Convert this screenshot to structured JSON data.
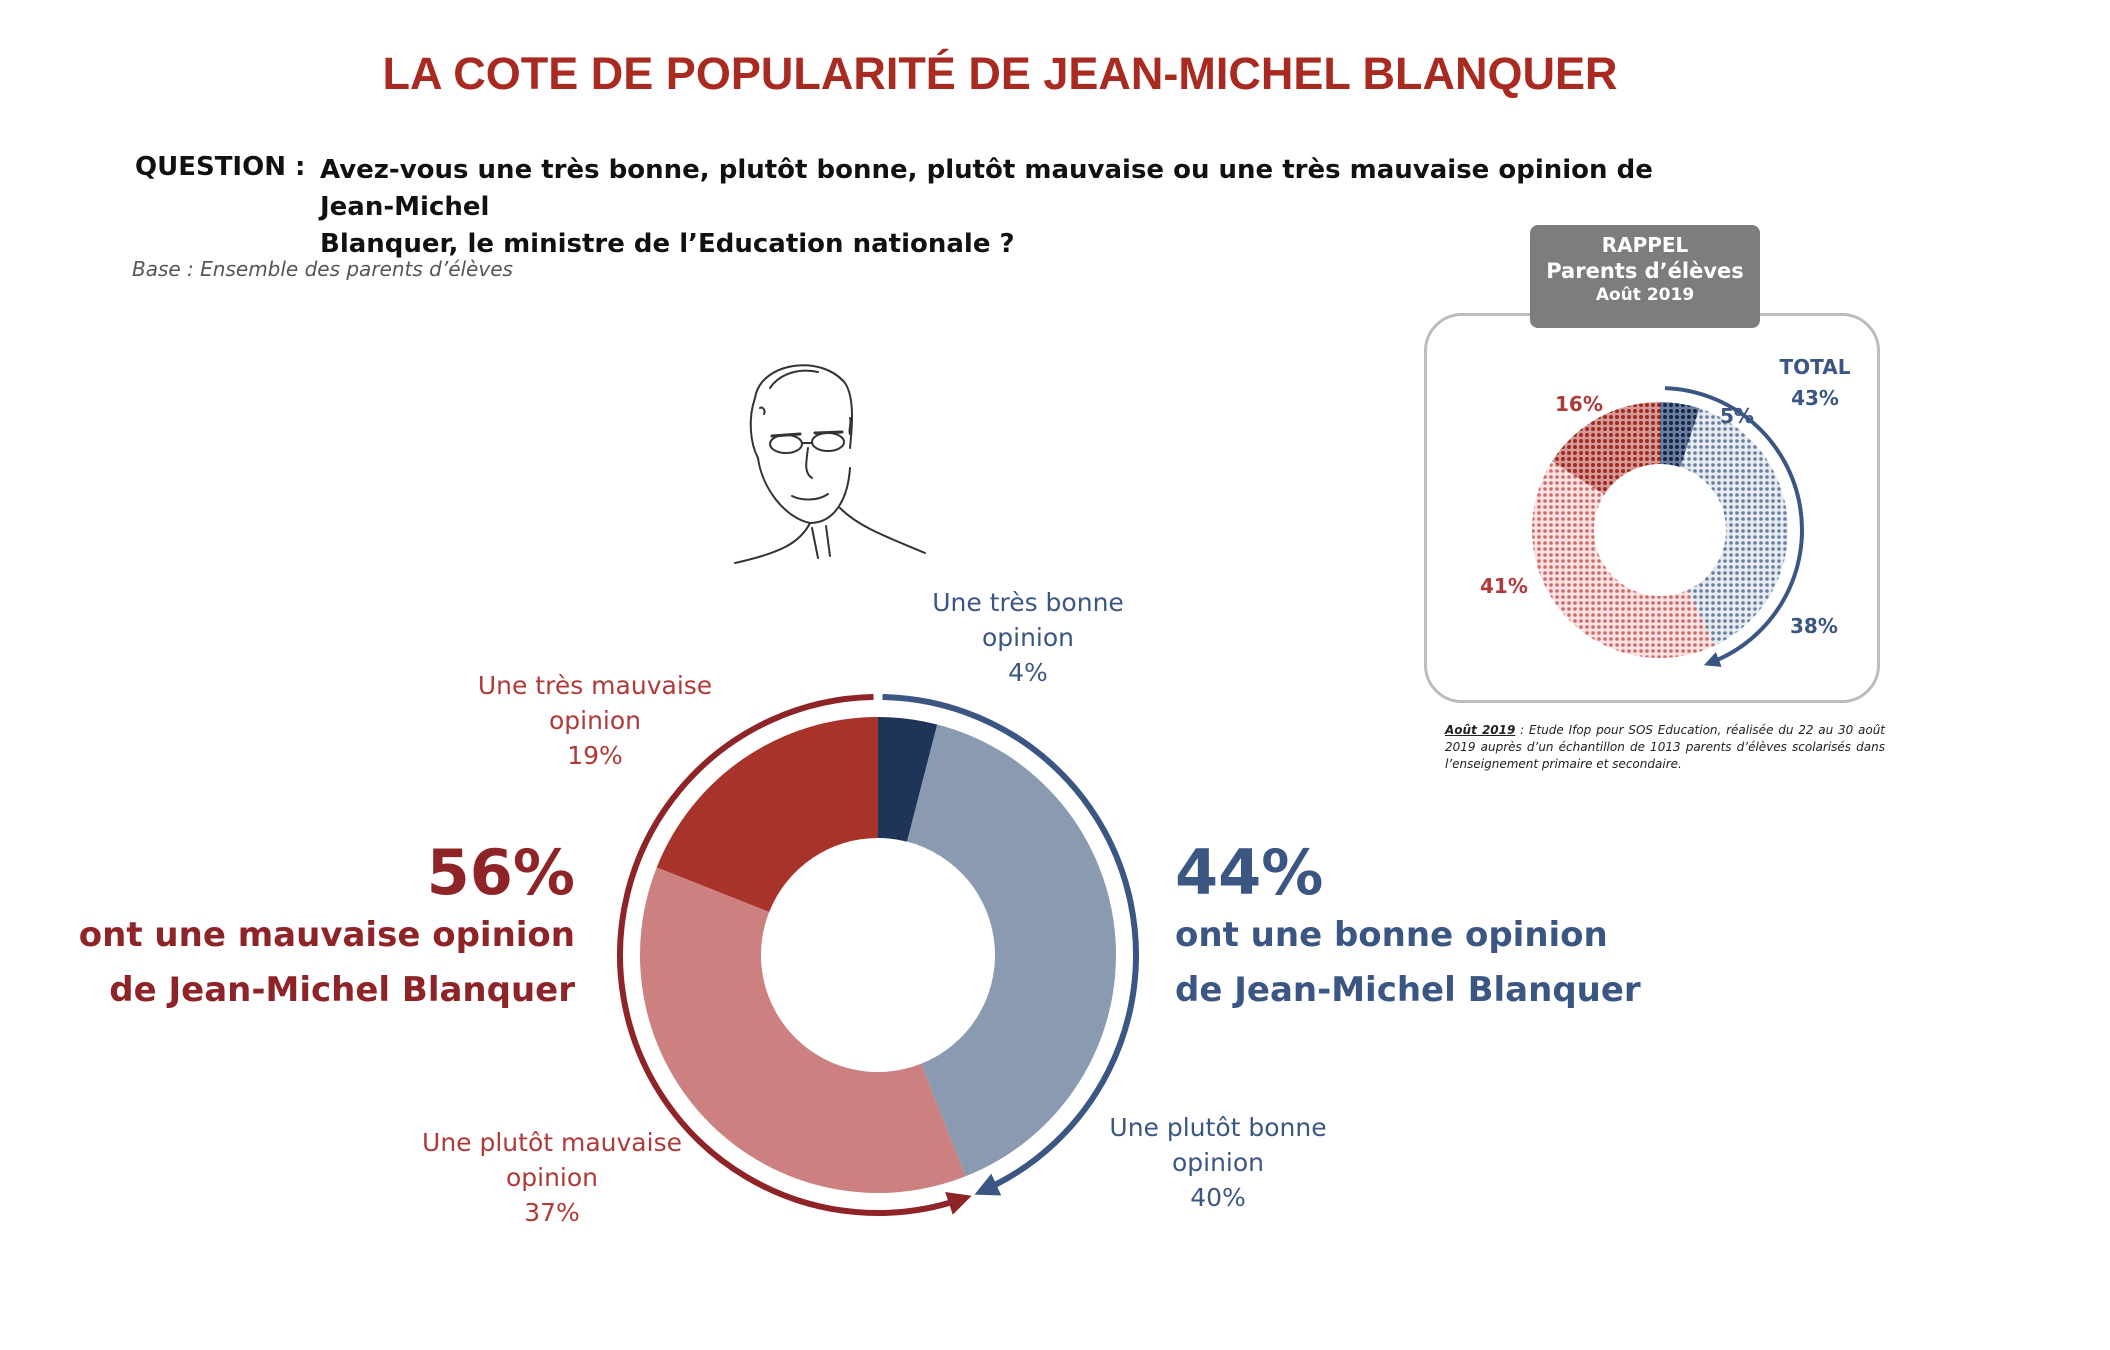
{
  "title": "LA COTE DE POPULARITÉ DE JEAN-MICHEL BLANQUER",
  "question_label": "QUESTION :",
  "question_line1": "Avez-vous une très bonne, plutôt bonne, plutôt mauvaise ou une très mauvaise opinion de Jean-Michel",
  "question_line2": "Blanquer, le ministre de l’Education nationale ?",
  "base": "Base : Ensemble des parents d’élèves",
  "portrait_icon": "portrait-sketch-icon",
  "colors": {
    "tres_bonne": "#1e3459",
    "plutot_bonne": "#8a9ab1",
    "plutot_mauvaise": "#cc8080",
    "tres_mauvaise": "#a8332a",
    "bad_text": "#8e2427",
    "good_text": "#3b5683"
  },
  "chart_data": [
    {
      "type": "pie",
      "categories": [
        "Une très bonne opinion",
        "Une plutôt bonne opinion",
        "Une plutôt mauvaise opinion",
        "Une très mauvaise opinion"
      ],
      "values": [
        4,
        40,
        37,
        19
      ],
      "slice_labels": [
        {
          "line1": "Une très bonne",
          "line2": "opinion",
          "value": "4%"
        },
        {
          "line1": "Une plutôt bonne",
          "line2": "opinion",
          "value": "40%"
        },
        {
          "line1": "Une plutôt mauvaise",
          "line2": "opinion",
          "value": "37%"
        },
        {
          "line1": "Une très mauvaise",
          "line2": "opinion",
          "value": "19%"
        }
      ],
      "totals": {
        "bad": {
          "value": "56%",
          "line1": "ont une mauvaise opinion",
          "line2": "de Jean-Michel Blanquer"
        },
        "good": {
          "value": "44%",
          "line1": "ont une bonne opinion",
          "line2": "de Jean-Michel Blanquer"
        }
      }
    },
    {
      "type": "pie",
      "header": {
        "line1": "RAPPEL",
        "line2": "Parents d’élèves",
        "line3": "Août 2019"
      },
      "categories": [
        "Une très bonne opinion",
        "Une plutôt bonne opinion",
        "Une plutôt mauvaise opinion",
        "Une très mauvaise opinion"
      ],
      "values": [
        5,
        38,
        41,
        16
      ],
      "value_labels": [
        "5%",
        "38%",
        "41%",
        "16%"
      ],
      "total_label": "TOTAL",
      "total_value": "43%"
    }
  ],
  "note": {
    "date": "Août 2019",
    "text": " : Etude Ifop pour SOS Education, réalisée du 22 au 30 août 2019 auprès d’un échantillon de 1013 parents d’élèves scolarisés dans l’enseignement primaire et secondaire."
  }
}
